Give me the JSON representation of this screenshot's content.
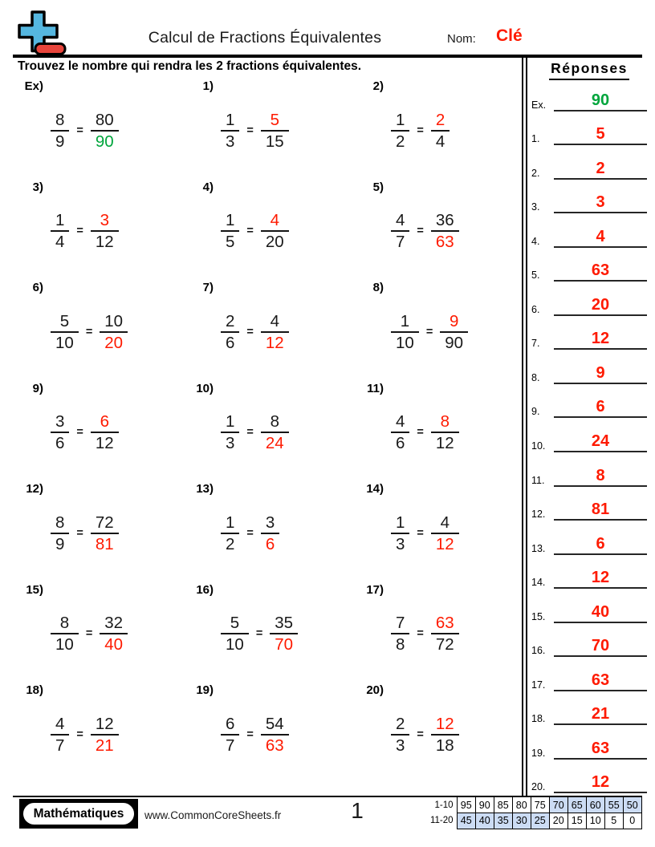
{
  "header": {
    "title": "Calcul de Fractions Équivalentes",
    "nom_label": "Nom:",
    "nom_value": "Clé"
  },
  "instruction": "Trouvez le nombre qui rendra les 2 fractions équivalentes.",
  "equals_sign": "=",
  "colors": {
    "answer_red": "#fe1a00",
    "example_green": "#00a53c",
    "table_highlight": "#ccdcf4",
    "logo_blue": "#55b7e0",
    "logo_red": "#e8453c"
  },
  "answers_header": "Réponses",
  "problems": [
    {
      "label": "Ex)",
      "f1n": "8",
      "f1d": "9",
      "f2n": "80",
      "f2d": "90",
      "missing": "d",
      "color": "green"
    },
    {
      "label": "1)",
      "f1n": "1",
      "f1d": "3",
      "f2n": "5",
      "f2d": "15",
      "missing": "n",
      "color": "red"
    },
    {
      "label": "2)",
      "f1n": "1",
      "f1d": "2",
      "f2n": "2",
      "f2d": "4",
      "missing": "n",
      "color": "red"
    },
    {
      "label": "3)",
      "f1n": "1",
      "f1d": "4",
      "f2n": "3",
      "f2d": "12",
      "missing": "n",
      "color": "red"
    },
    {
      "label": "4)",
      "f1n": "1",
      "f1d": "5",
      "f2n": "4",
      "f2d": "20",
      "missing": "n",
      "color": "red"
    },
    {
      "label": "5)",
      "f1n": "4",
      "f1d": "7",
      "f2n": "36",
      "f2d": "63",
      "missing": "d",
      "color": "red"
    },
    {
      "label": "6)",
      "f1n": "5",
      "f1d": "10",
      "f2n": "10",
      "f2d": "20",
      "missing": "d",
      "color": "red"
    },
    {
      "label": "7)",
      "f1n": "2",
      "f1d": "6",
      "f2n": "4",
      "f2d": "12",
      "missing": "d",
      "color": "red"
    },
    {
      "label": "8)",
      "f1n": "1",
      "f1d": "10",
      "f2n": "9",
      "f2d": "90",
      "missing": "n",
      "color": "red"
    },
    {
      "label": "9)",
      "f1n": "3",
      "f1d": "6",
      "f2n": "6",
      "f2d": "12",
      "missing": "n",
      "color": "red"
    },
    {
      "label": "10)",
      "f1n": "1",
      "f1d": "3",
      "f2n": "8",
      "f2d": "24",
      "missing": "d",
      "color": "red"
    },
    {
      "label": "11)",
      "f1n": "4",
      "f1d": "6",
      "f2n": "8",
      "f2d": "12",
      "missing": "n",
      "color": "red"
    },
    {
      "label": "12)",
      "f1n": "8",
      "f1d": "9",
      "f2n": "72",
      "f2d": "81",
      "missing": "d",
      "color": "red"
    },
    {
      "label": "13)",
      "f1n": "1",
      "f1d": "2",
      "f2n": "3",
      "f2d": "6",
      "missing": "d",
      "color": "red"
    },
    {
      "label": "14)",
      "f1n": "1",
      "f1d": "3",
      "f2n": "4",
      "f2d": "12",
      "missing": "d",
      "color": "red"
    },
    {
      "label": "15)",
      "f1n": "8",
      "f1d": "10",
      "f2n": "32",
      "f2d": "40",
      "missing": "d",
      "color": "red"
    },
    {
      "label": "16)",
      "f1n": "5",
      "f1d": "10",
      "f2n": "35",
      "f2d": "70",
      "missing": "d",
      "color": "red"
    },
    {
      "label": "17)",
      "f1n": "7",
      "f1d": "8",
      "f2n": "63",
      "f2d": "72",
      "missing": "n",
      "color": "red"
    },
    {
      "label": "18)",
      "f1n": "4",
      "f1d": "7",
      "f2n": "12",
      "f2d": "21",
      "missing": "d",
      "color": "red"
    },
    {
      "label": "19)",
      "f1n": "6",
      "f1d": "7",
      "f2n": "54",
      "f2d": "63",
      "missing": "d",
      "color": "red"
    },
    {
      "label": "20)",
      "f1n": "2",
      "f1d": "3",
      "f2n": "12",
      "f2d": "18",
      "missing": "n",
      "color": "red"
    }
  ],
  "answers": [
    {
      "label": "Ex.",
      "value": "90",
      "color": "green"
    },
    {
      "label": "1.",
      "value": "5",
      "color": "red"
    },
    {
      "label": "2.",
      "value": "2",
      "color": "red"
    },
    {
      "label": "3.",
      "value": "3",
      "color": "red"
    },
    {
      "label": "4.",
      "value": "4",
      "color": "red"
    },
    {
      "label": "5.",
      "value": "63",
      "color": "red"
    },
    {
      "label": "6.",
      "value": "20",
      "color": "red"
    },
    {
      "label": "7.",
      "value": "12",
      "color": "red"
    },
    {
      "label": "8.",
      "value": "9",
      "color": "red"
    },
    {
      "label": "9.",
      "value": "6",
      "color": "red"
    },
    {
      "label": "10.",
      "value": "24",
      "color": "red"
    },
    {
      "label": "11.",
      "value": "8",
      "color": "red"
    },
    {
      "label": "12.",
      "value": "81",
      "color": "red"
    },
    {
      "label": "13.",
      "value": "6",
      "color": "red"
    },
    {
      "label": "14.",
      "value": "12",
      "color": "red"
    },
    {
      "label": "15.",
      "value": "40",
      "color": "red"
    },
    {
      "label": "16.",
      "value": "70",
      "color": "red"
    },
    {
      "label": "17.",
      "value": "63",
      "color": "red"
    },
    {
      "label": "18.",
      "value": "21",
      "color": "red"
    },
    {
      "label": "19.",
      "value": "63",
      "color": "red"
    },
    {
      "label": "20.",
      "value": "12",
      "color": "red"
    }
  ],
  "footer": {
    "brand": "Mathématiques",
    "site": "www.CommonCoreSheets.fr",
    "page": "1",
    "grade_table": {
      "row1_label": "1-10",
      "row2_label": "11-20",
      "row1": [
        "95",
        "90",
        "85",
        "80",
        "75",
        "70",
        "65",
        "60",
        "55",
        "50"
      ],
      "row1_highlight": [
        5,
        6,
        7,
        8,
        9
      ],
      "row2": [
        "45",
        "40",
        "35",
        "30",
        "25",
        "20",
        "15",
        "10",
        "5",
        "0"
      ],
      "row2_highlight": [
        0,
        1,
        2,
        3,
        4
      ]
    }
  }
}
